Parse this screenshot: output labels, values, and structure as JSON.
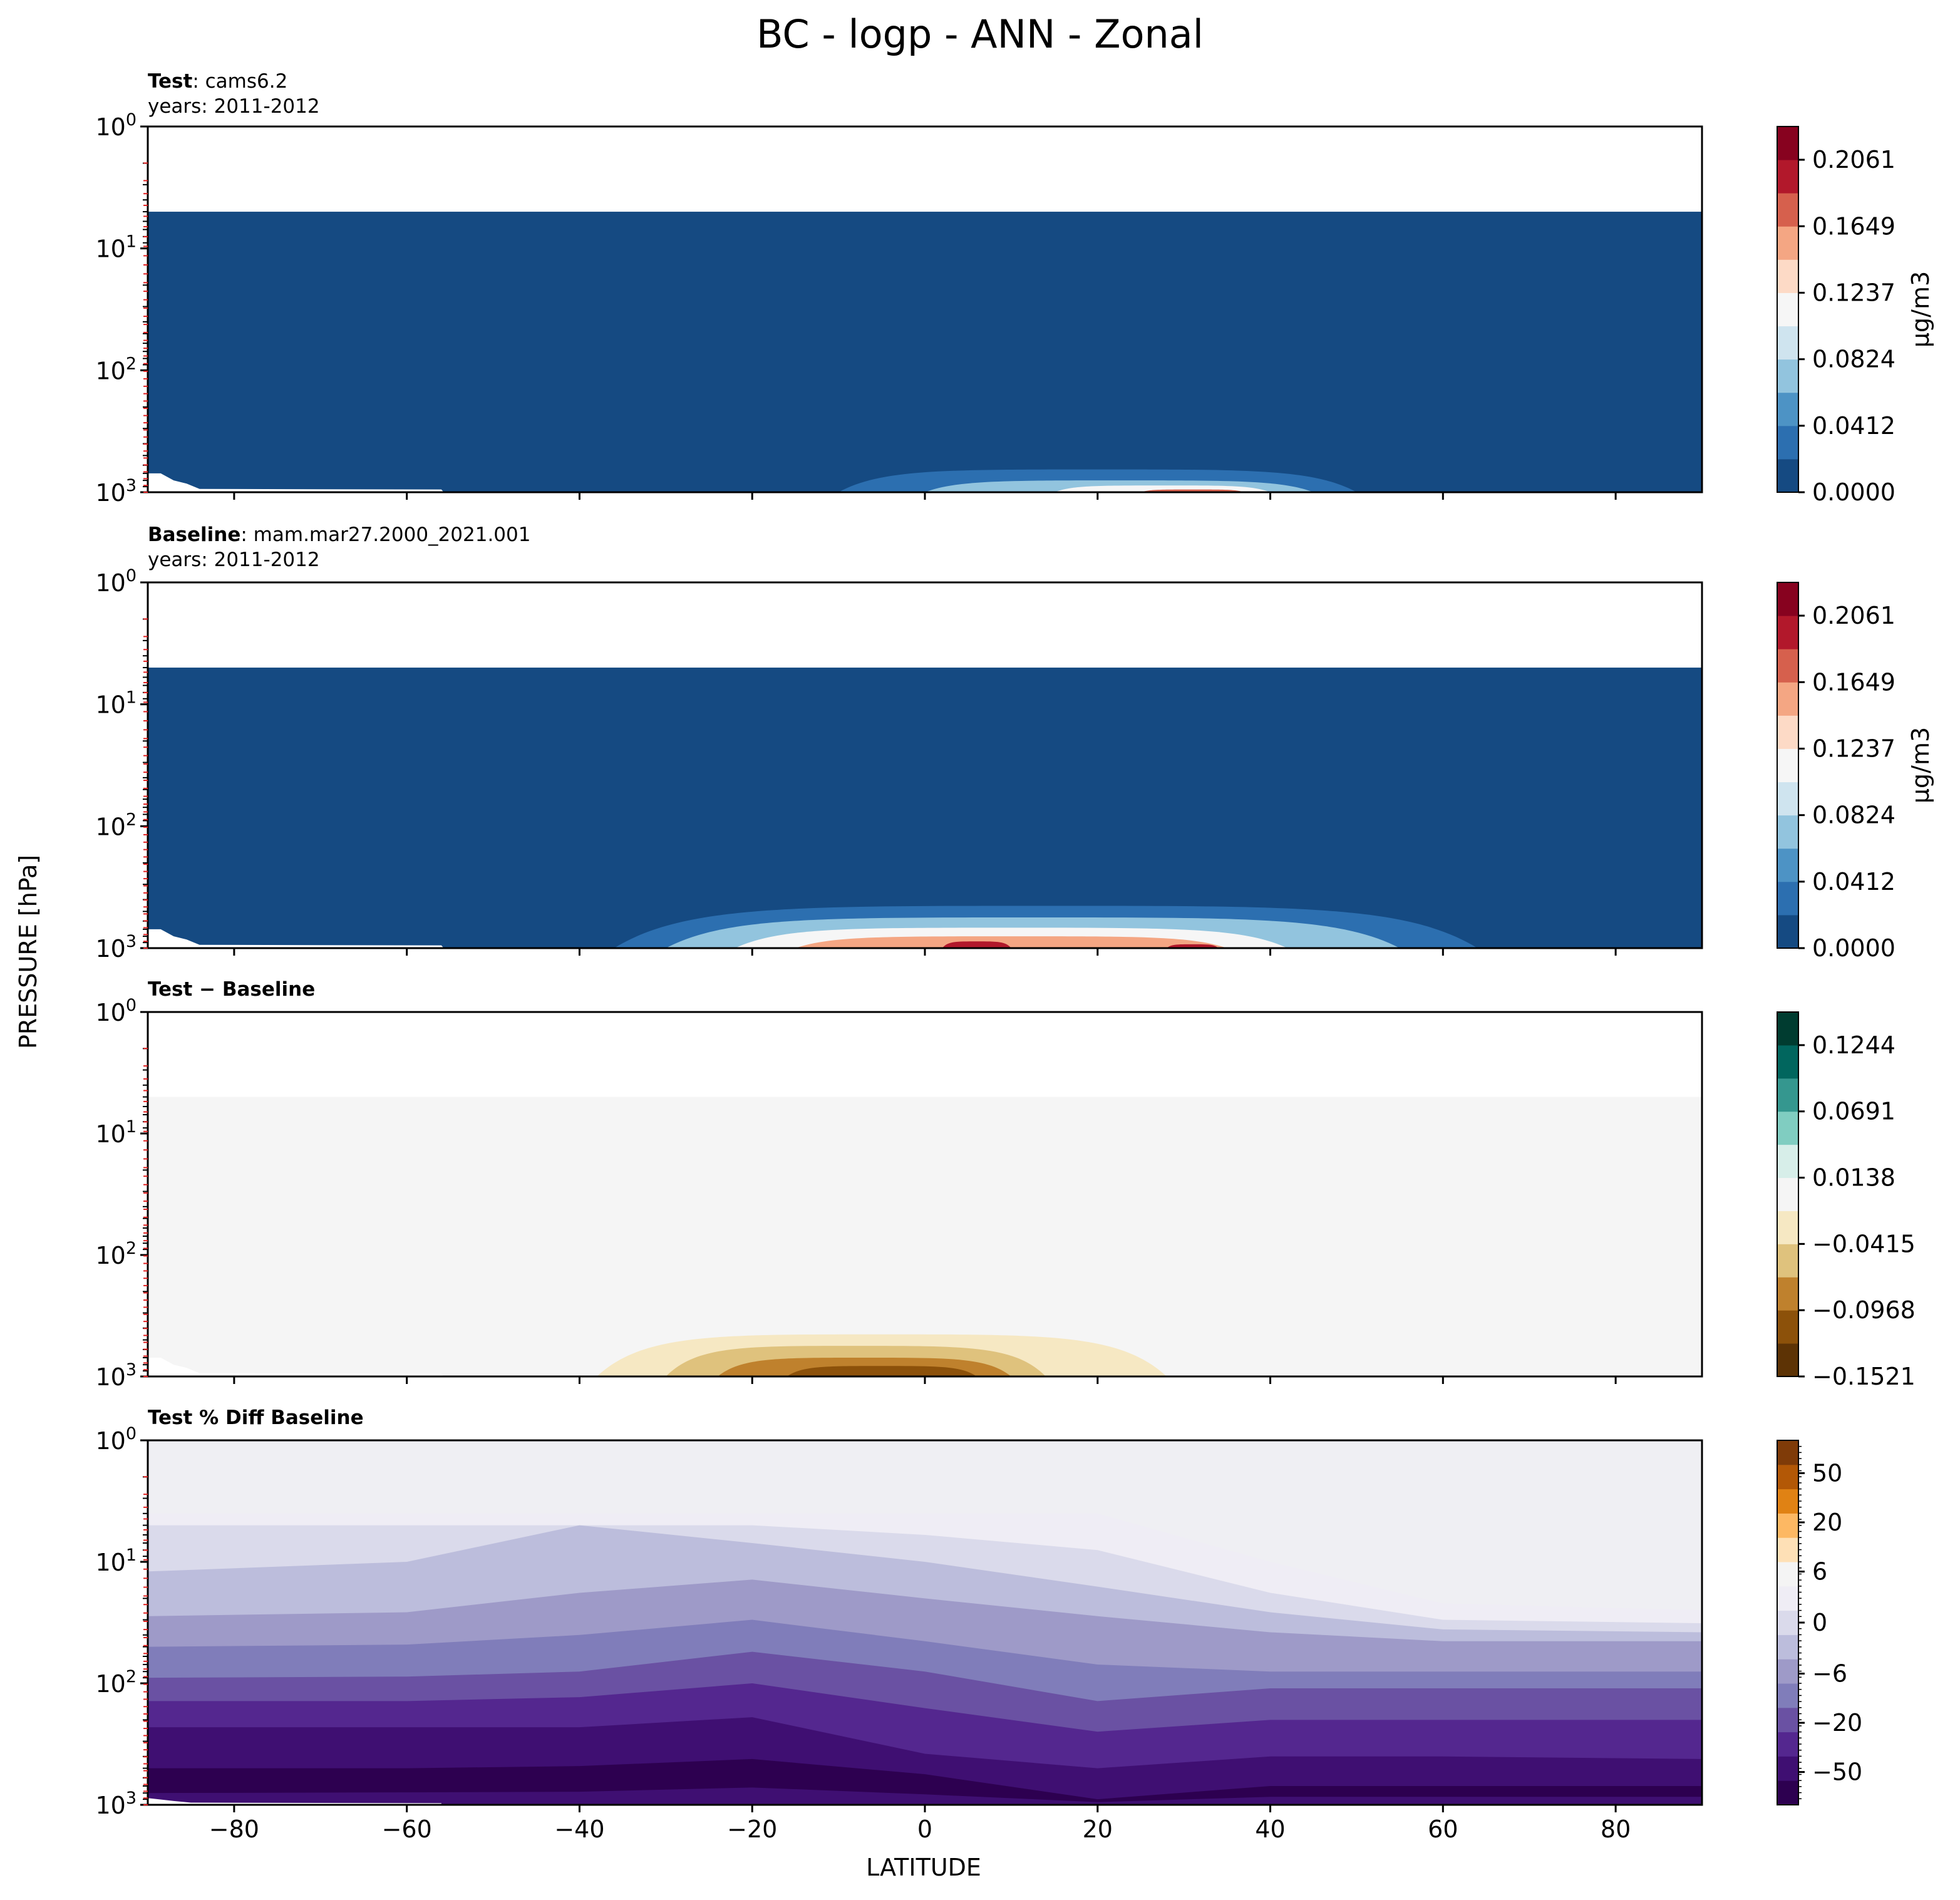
{
  "figure": {
    "title": "BC - logp - ANN - Zonal",
    "ylabel": "PRESSURE [hPa]",
    "xlabel": "LATITUDE"
  },
  "panels": [
    {
      "name_bold": "Test",
      "name_rest": ": cams6.2",
      "years": "years: 2011-2012"
    },
    {
      "name_bold": "Baseline",
      "name_rest": ": mam.mar27.2000_2021.001",
      "years": "years: 2011-2012"
    },
    {
      "name_bold": "Test − Baseline",
      "name_rest": "",
      "years": ""
    },
    {
      "name_bold": "Test % Diff Baseline",
      "name_rest": "",
      "years": ""
    }
  ],
  "chart_data": [
    {
      "type": "heatmap",
      "title": "Test : cams6.2",
      "subtitle": "years: 2011-2012",
      "x_ticks": [
        -80,
        -60,
        -40,
        -20,
        0,
        20,
        40,
        60,
        80
      ],
      "xlim": [
        -90,
        90
      ],
      "y_scale": "log",
      "y_inverted": true,
      "y_ticks": [
        "10^0",
        "10^1",
        "10^2",
        "10^3"
      ],
      "ylim": [
        1,
        1000
      ],
      "colorbar": {
        "label": "μg/m3",
        "tick_labels": [
          "0.0000",
          "0.0412",
          "0.0824",
          "0.1237",
          "0.1649",
          "0.2061"
        ],
        "levels": [
          0.0,
          0.0206,
          0.0412,
          0.0618,
          0.0824,
          0.1031,
          0.1237,
          0.1443,
          0.1649,
          0.1855,
          0.2061,
          0.2267
        ],
        "colors": [
          "#154a82",
          "#2c6fb0",
          "#4d93c5",
          "#92c4de",
          "#cfe4ef",
          "#f6f6f6",
          "#fddac6",
          "#f4a683",
          "#d6604d",
          "#b2182b",
          "#87021f"
        ]
      },
      "top_blank_above_hpa": 5,
      "features": [
        {
          "lat": [
            -10,
            50
          ],
          "hpa_top": 650,
          "level_index": 1
        },
        {
          "lat": [
            0,
            45
          ],
          "hpa_top": 800,
          "level_index": 3
        },
        {
          "lat": [
            15,
            40
          ],
          "hpa_top": 880,
          "level_index": 5
        },
        {
          "lat": [
            25,
            37
          ],
          "hpa_top": 950,
          "level_index": 8
        }
      ]
    },
    {
      "type": "heatmap",
      "title": "Baseline : mam.mar27.2000_2021.001",
      "subtitle": "years: 2011-2012",
      "x_ticks": [
        -80,
        -60,
        -40,
        -20,
        0,
        20,
        40,
        60,
        80
      ],
      "xlim": [
        -90,
        90
      ],
      "y_scale": "log",
      "y_inverted": true,
      "y_ticks": [
        "10^0",
        "10^1",
        "10^2",
        "10^3"
      ],
      "ylim": [
        1,
        1000
      ],
      "colorbar": {
        "label": "μg/m3",
        "tick_labels": [
          "0.0000",
          "0.0412",
          "0.0824",
          "0.1237",
          "0.1649",
          "0.2061"
        ],
        "levels": [
          0.0,
          0.0206,
          0.0412,
          0.0618,
          0.0824,
          0.1031,
          0.1237,
          0.1443,
          0.1649,
          0.1855,
          0.2061,
          0.2267
        ],
        "colors": [
          "#154a82",
          "#2c6fb0",
          "#4d93c5",
          "#92c4de",
          "#cfe4ef",
          "#f6f6f6",
          "#fddac6",
          "#f4a683",
          "#d6604d",
          "#b2182b",
          "#87021f"
        ]
      },
      "top_blank_above_hpa": 5,
      "features": [
        {
          "lat": [
            -36,
            64
          ],
          "hpa_top": 450,
          "level_index": 1
        },
        {
          "lat": [
            -30,
            55
          ],
          "hpa_top": 560,
          "level_index": 3
        },
        {
          "lat": [
            -22,
            42
          ],
          "hpa_top": 680,
          "level_index": 5
        },
        {
          "lat": [
            -15,
            35
          ],
          "hpa_top": 800,
          "level_index": 7
        },
        {
          "lat": [
            2,
            10
          ],
          "hpa_top": 880,
          "level_index": 9
        },
        {
          "lat": [
            28,
            34
          ],
          "hpa_top": 930,
          "level_index": 9
        }
      ]
    },
    {
      "type": "heatmap",
      "title": "Test − Baseline",
      "x_ticks": [
        -80,
        -60,
        -40,
        -20,
        0,
        20,
        40,
        60,
        80
      ],
      "xlim": [
        -90,
        90
      ],
      "y_scale": "log",
      "y_inverted": true,
      "y_ticks": [
        "10^0",
        "10^1",
        "10^2",
        "10^3"
      ],
      "ylim": [
        1,
        1000
      ],
      "colorbar": {
        "tick_labels": [
          "−0.1521",
          "−0.0968",
          "−0.0415",
          "0.0138",
          "0.0691",
          "0.1244"
        ],
        "levels": [
          -0.1521,
          -0.1244,
          -0.0968,
          -0.0691,
          -0.0415,
          -0.0138,
          0.0138,
          0.0415,
          0.0691,
          0.0968,
          0.1244,
          0.1521
        ],
        "colors": [
          "#5d3305",
          "#8c510a",
          "#bf812d",
          "#dfc27d",
          "#f6e8c3",
          "#f5f5f5",
          "#d7eee9",
          "#80cdc1",
          "#35978f",
          "#01665e",
          "#003c30"
        ]
      },
      "top_blank_above_hpa": 5,
      "features": [
        {
          "lat": [
            -38,
            28
          ],
          "hpa_top": 450,
          "level_index": 4
        },
        {
          "lat": [
            -30,
            14
          ],
          "hpa_top": 560,
          "level_index": 3
        },
        {
          "lat": [
            -24,
            10
          ],
          "hpa_top": 700,
          "level_index": 2
        },
        {
          "lat": [
            -16,
            6
          ],
          "hpa_top": 820,
          "level_index": 1
        }
      ]
    },
    {
      "type": "heatmap",
      "title": "Test % Diff Baseline",
      "x_ticks": [
        -80,
        -60,
        -40,
        -20,
        0,
        20,
        40,
        60,
        80
      ],
      "xlim": [
        -90,
        90
      ],
      "y_scale": "log",
      "y_inverted": true,
      "y_ticks": [
        "10^0",
        "10^1",
        "10^2",
        "10^3"
      ],
      "ylim": [
        1,
        1000
      ],
      "colorbar": {
        "tick_labels": [
          "−50",
          "−20",
          "−6",
          "0",
          "6",
          "20",
          "50"
        ],
        "colors": [
          "#2d0050",
          "#3f0f72",
          "#54278f",
          "#6a51a3",
          "#807dba",
          "#9e9ac8",
          "#bcbddc",
          "#dadaeb",
          "#efedf5",
          "#f4f4f4",
          "#fee0b6",
          "#fdb863",
          "#e08214",
          "#b35806",
          "#7f3b08"
        ]
      },
      "bands_hpa_by_lat": {
        "lat": [
          -90,
          -60,
          -40,
          -20,
          0,
          20,
          40,
          60,
          90
        ],
        "boundaries": [
          [
            4,
            4,
            4,
            4,
            4,
            4,
            10,
            22,
            25
          ],
          [
            5,
            5,
            5,
            5,
            6,
            8,
            18,
            30,
            32
          ],
          [
            12,
            10,
            5,
            7,
            10,
            16,
            26,
            36,
            38
          ],
          [
            28,
            26,
            18,
            14,
            20,
            28,
            38,
            45,
            45
          ],
          [
            50,
            48,
            40,
            30,
            45,
            70,
            80,
            80,
            80
          ],
          [
            90,
            88,
            80,
            55,
            80,
            140,
            110,
            110,
            110
          ],
          [
            140,
            140,
            130,
            100,
            160,
            250,
            200,
            200,
            200
          ],
          [
            230,
            230,
            230,
            190,
            380,
            500,
            400,
            400,
            420
          ],
          [
            500,
            500,
            480,
            420,
            560,
            900,
            700,
            700,
            700
          ],
          [
            800,
            790,
            780,
            720,
            820,
            950,
            860,
            860,
            860
          ]
        ]
      }
    }
  ]
}
